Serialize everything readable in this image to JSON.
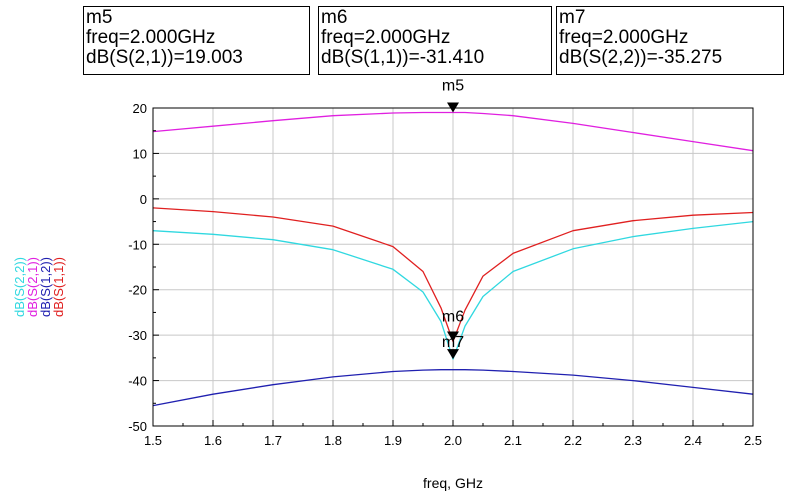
{
  "markers": [
    {
      "name": "m5",
      "freq_text": "freq=2.000GHz",
      "value_text": "dB(S(2,1))=19.003"
    },
    {
      "name": "m6",
      "freq_text": "freq=2.000GHz",
      "value_text": "dB(S(1,1))=-31.410"
    },
    {
      "name": "m7",
      "freq_text": "freq=2.000GHz",
      "value_text": "dB(S(2,2))=-35.275"
    }
  ],
  "chart_data": {
    "type": "line",
    "xlabel": "freq, GHz",
    "xlim": [
      1.5,
      2.5
    ],
    "ylim": [
      -50,
      20
    ],
    "x_ticks": [
      1.5,
      1.6,
      1.7,
      1.8,
      1.9,
      2.0,
      2.1,
      2.2,
      2.3,
      2.4,
      2.5
    ],
    "y_ticks": [
      -50,
      -40,
      -30,
      -20,
      -10,
      0,
      10,
      20
    ],
    "x_tick_labels": [
      "1.5",
      "1.6",
      "1.7",
      "1.8",
      "1.9",
      "2.0",
      "2.1",
      "2.2",
      "2.3",
      "2.4",
      "2.5"
    ],
    "y_tick_labels": [
      "-50",
      "-40",
      "-30",
      "-20",
      "-10",
      "0",
      "10",
      "20"
    ],
    "grid": true,
    "x": [
      1.5,
      1.6,
      1.7,
      1.8,
      1.9,
      1.95,
      1.98,
      2.0,
      2.02,
      2.05,
      2.1,
      2.2,
      2.3,
      2.4,
      2.5
    ],
    "series": [
      {
        "name": "dB(S(1,1))",
        "color": "#e02020",
        "values": [
          -2,
          -2.8,
          -4.0,
          -6.0,
          -10.5,
          -16.0,
          -24.0,
          -31.4,
          -24.5,
          -17.0,
          -12.0,
          -7.0,
          -4.8,
          -3.6,
          -3.0
        ]
      },
      {
        "name": "dB(S(1,2))",
        "color": "#2020b0",
        "values": [
          -45.5,
          -43.0,
          -40.9,
          -39.2,
          -38.0,
          -37.7,
          -37.6,
          -37.6,
          -37.6,
          -37.7,
          -38.0,
          -38.8,
          -40.0,
          -41.5,
          -43.0
        ]
      },
      {
        "name": "dB(S(2,1))",
        "color": "#e020e0",
        "values": [
          14.8,
          16.0,
          17.2,
          18.3,
          18.9,
          19.0,
          19.0,
          19.003,
          19.0,
          18.8,
          18.3,
          16.6,
          14.6,
          12.6,
          10.6
        ]
      },
      {
        "name": "dB(S(2,2))",
        "color": "#30d8e0",
        "values": [
          -7.0,
          -7.8,
          -9.0,
          -11.2,
          -15.5,
          -20.5,
          -27.0,
          -35.275,
          -28.0,
          -21.5,
          -16.0,
          -11.0,
          -8.3,
          -6.5,
          -5.0
        ]
      }
    ],
    "legend_placement": "left-vertical",
    "marker_points": [
      {
        "name": "m5",
        "x": 2.0,
        "y": 19.003
      },
      {
        "name": "m6",
        "x": 2.0,
        "y": -31.41
      },
      {
        "name": "m7",
        "x": 2.0,
        "y": -35.275
      }
    ]
  }
}
